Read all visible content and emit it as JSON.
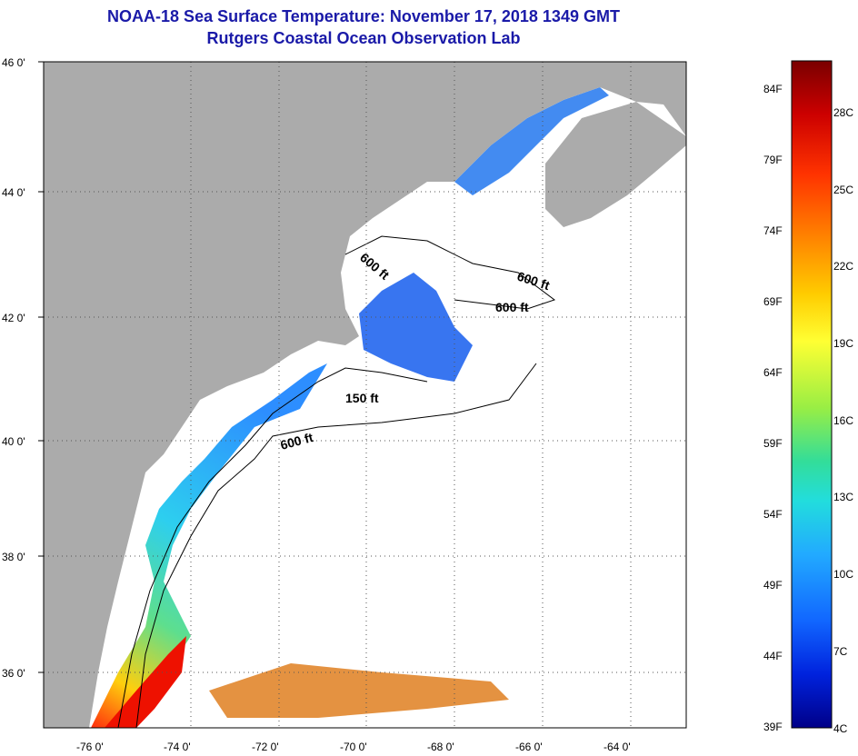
{
  "title_line1": "NOAA-18 Sea Surface Temperature:  November 17, 2018 1349 GMT",
  "title_line2": "Rutgers Coastal Ocean Observation Lab",
  "map": {
    "lat_labels": [
      "46 0'",
      "44 0'",
      "42 0'",
      "40 0'",
      "38 0'",
      "36 0'"
    ],
    "lon_labels": [
      "-76 0'",
      "-74 0'",
      "-72 0'",
      "-70 0'",
      "-68 0'",
      "-66 0'",
      "-64 0'"
    ],
    "contour_labels": [
      "600 ft",
      "600 ft",
      "600 ft",
      "150 ft",
      "600 ft"
    ],
    "colors": {
      "land": "#ababab",
      "ocean": "#ffffff",
      "frame": "#000000"
    }
  },
  "colorbar": {
    "fahrenheit_labels": [
      "84F",
      "79F",
      "74F",
      "69F",
      "64F",
      "59F",
      "54F",
      "49F",
      "44F",
      "39F"
    ],
    "celsius_labels": [
      "28C",
      "25C",
      "22C",
      "19C",
      "16C",
      "13C",
      "10C",
      "7C",
      "4C"
    ],
    "gradient": [
      "#7a0000",
      "#cc0000",
      "#ff3300",
      "#ff8800",
      "#ffcc00",
      "#ffff33",
      "#99ee44",
      "#33dd99",
      "#22dddd",
      "#22aaff",
      "#1166ff",
      "#0022dd",
      "#000088"
    ]
  }
}
